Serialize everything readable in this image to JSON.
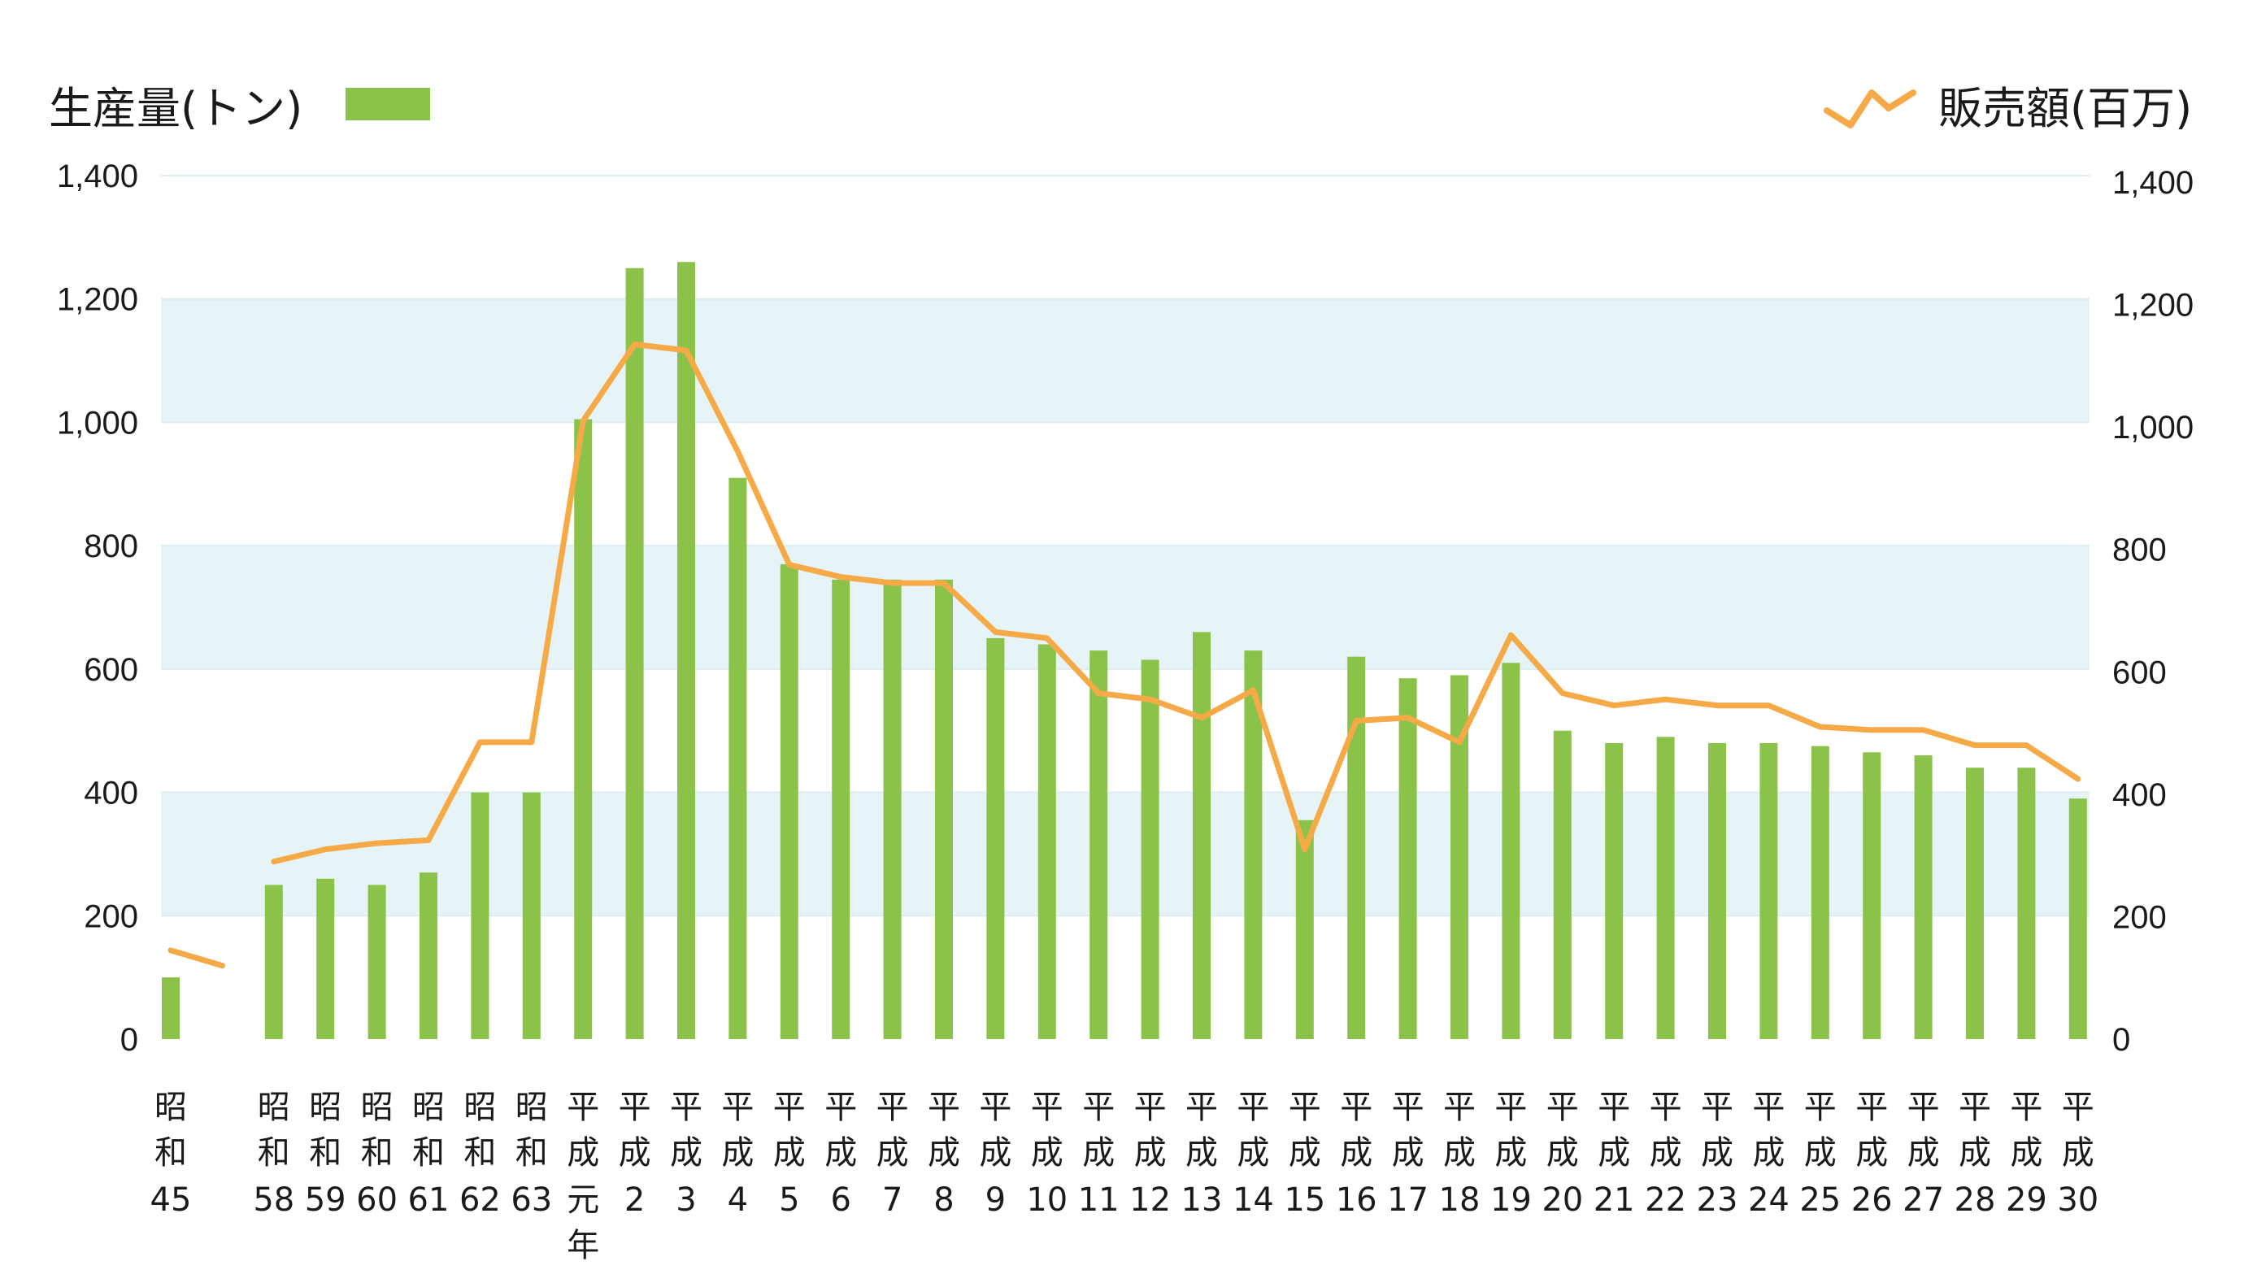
{
  "chart_data": {
    "type": "bar+line",
    "legend": {
      "bars_label": "生産量(トン)",
      "line_label": "販売額(百万)"
    },
    "colors": {
      "bar": "#8bc34a",
      "line": "#f5a947",
      "band": "#e6f4f8"
    },
    "y_left": {
      "min": 0,
      "max": 1400,
      "ticks": [
        "0",
        "200",
        "400",
        "600",
        "800",
        "1,000",
        "1,200",
        "1,400"
      ]
    },
    "y_right": {
      "min": 0,
      "max": 1400,
      "ticks": [
        "0",
        "200",
        "400",
        "600",
        "800",
        "1,000",
        "1,200",
        "1,400"
      ]
    },
    "categories": [
      {
        "era": "昭和",
        "year": "45"
      },
      {
        "era": "",
        "year": ""
      },
      {
        "era": "昭和",
        "year": "58"
      },
      {
        "era": "昭和",
        "year": "59"
      },
      {
        "era": "昭和",
        "year": "60"
      },
      {
        "era": "昭和",
        "year": "61"
      },
      {
        "era": "昭和",
        "year": "62"
      },
      {
        "era": "昭和",
        "year": "63"
      },
      {
        "era": "平成",
        "year": "元年"
      },
      {
        "era": "平成",
        "year": "2"
      },
      {
        "era": "平成",
        "year": "3"
      },
      {
        "era": "平成",
        "year": "4"
      },
      {
        "era": "平成",
        "year": "5"
      },
      {
        "era": "平成",
        "year": "6"
      },
      {
        "era": "平成",
        "year": "7"
      },
      {
        "era": "平成",
        "year": "8"
      },
      {
        "era": "平成",
        "year": "9"
      },
      {
        "era": "平成",
        "year": "10"
      },
      {
        "era": "平成",
        "year": "11"
      },
      {
        "era": "平成",
        "year": "12"
      },
      {
        "era": "平成",
        "year": "13"
      },
      {
        "era": "平成",
        "year": "14"
      },
      {
        "era": "平成",
        "year": "15"
      },
      {
        "era": "平成",
        "year": "16"
      },
      {
        "era": "平成",
        "year": "17"
      },
      {
        "era": "平成",
        "year": "18"
      },
      {
        "era": "平成",
        "year": "19"
      },
      {
        "era": "平成",
        "year": "20"
      },
      {
        "era": "平成",
        "year": "21"
      },
      {
        "era": "平成",
        "year": "22"
      },
      {
        "era": "平成",
        "year": "23"
      },
      {
        "era": "平成",
        "year": "24"
      },
      {
        "era": "平成",
        "year": "25"
      },
      {
        "era": "平成",
        "year": "26"
      },
      {
        "era": "平成",
        "year": "27"
      },
      {
        "era": "平成",
        "year": "28"
      },
      {
        "era": "平成",
        "year": "29"
      },
      {
        "era": "平成",
        "year": "30"
      }
    ],
    "series": [
      {
        "name": "生産量(トン)",
        "type": "bar",
        "values": [
          100,
          null,
          250,
          260,
          250,
          270,
          400,
          400,
          1005,
          1250,
          1260,
          910,
          770,
          745,
          745,
          745,
          650,
          640,
          630,
          615,
          660,
          630,
          355,
          620,
          585,
          590,
          610,
          500,
          480,
          490,
          480,
          480,
          475,
          465,
          460,
          440,
          440,
          390
        ]
      },
      {
        "name": "販売額(百万)",
        "type": "line",
        "values": [
          145,
          120,
          290,
          310,
          320,
          325,
          485,
          485,
          1010,
          1135,
          1125,
          960,
          775,
          755,
          745,
          745,
          665,
          655,
          565,
          555,
          525,
          570,
          310,
          520,
          525,
          485,
          660,
          565,
          545,
          555,
          545,
          545,
          510,
          505,
          505,
          480,
          480,
          425
        ]
      }
    ]
  }
}
